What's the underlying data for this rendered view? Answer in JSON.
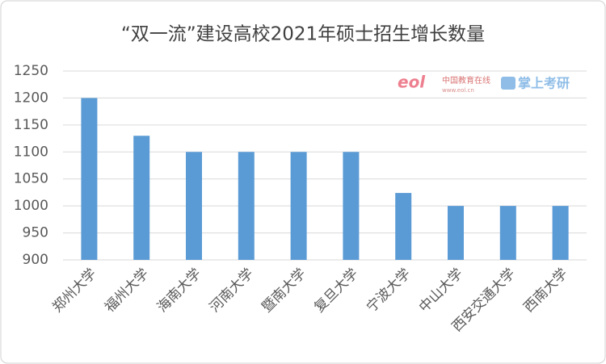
{
  "chart_data": {
    "type": "bar",
    "title": "“双一流”建设高校2021年硕士招生增长数量",
    "categories": [
      "郑州大学",
      "福州大学",
      "海南大学",
      "河南大学",
      "暨南大学",
      "复旦大学",
      "宁波大学",
      "中山大学",
      "西安交通大学",
      "西南大学"
    ],
    "values": [
      1200,
      1130,
      1100,
      1100,
      1100,
      1100,
      1024,
      1000,
      1000,
      1000
    ],
    "color": "#5b9bd5",
    "ylim": [
      900,
      1250
    ],
    "yticks": [
      900,
      950,
      1000,
      1050,
      1100,
      1150,
      1200,
      1250
    ],
    "grid": true,
    "watermark": {
      "logo": "eol",
      "site": "中国教育在线",
      "url": "www.eol.cn",
      "app": "掌上考研"
    }
  }
}
